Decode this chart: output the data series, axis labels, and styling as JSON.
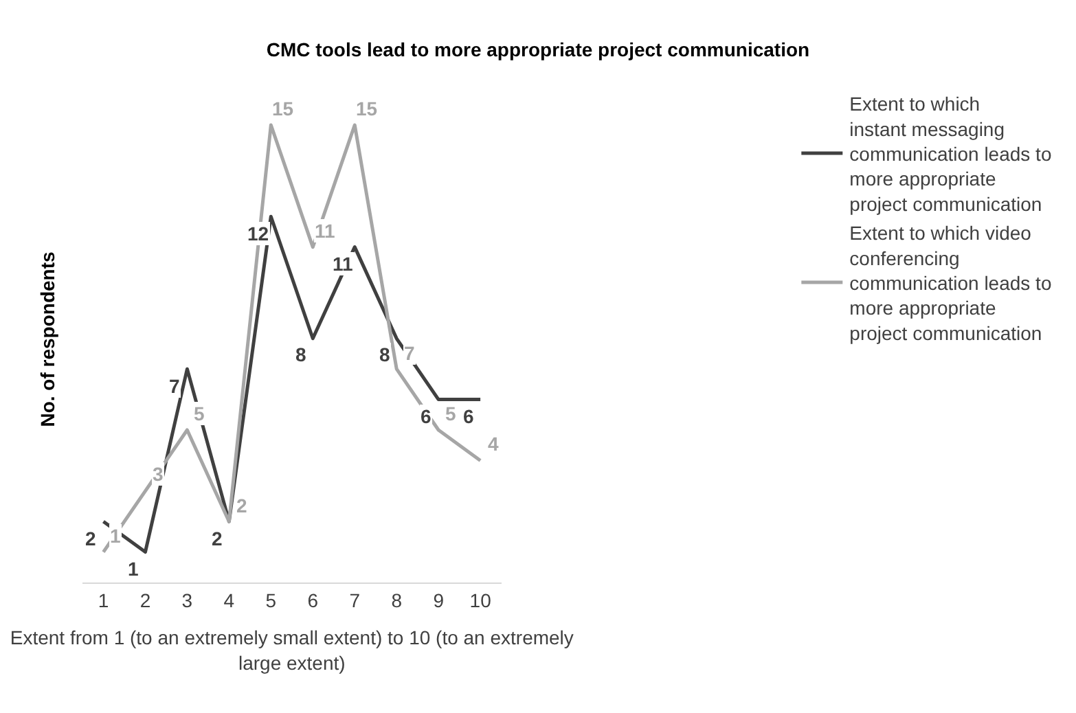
{
  "chart_data": {
    "type": "line",
    "title": "CMC tools lead to more appropriate project communication",
    "xlabel": "Extent from 1 (to an extremely small extent) to 10 (to an extremely large extent)",
    "ylabel": "No. of respondents",
    "categories": [
      "1",
      "2",
      "3",
      "4",
      "5",
      "6",
      "7",
      "8",
      "9",
      "10"
    ],
    "series": [
      {
        "name": "Extent to which instant messaging communication leads to more appropriate project communication",
        "color": "#404040",
        "values": [
          2,
          1,
          7,
          2,
          12,
          8,
          11,
          8,
          6,
          6
        ]
      },
      {
        "name": "Extent to which video conferencing communication leads to more appropriate project communication",
        "color": "#a6a6a6",
        "values": [
          1,
          3,
          5,
          2,
          15,
          11,
          15,
          7,
          5,
          4
        ]
      }
    ],
    "data_labels": true,
    "legend": "right",
    "tick_labels": "x",
    "marker": "none",
    "line_style": "solid"
  }
}
